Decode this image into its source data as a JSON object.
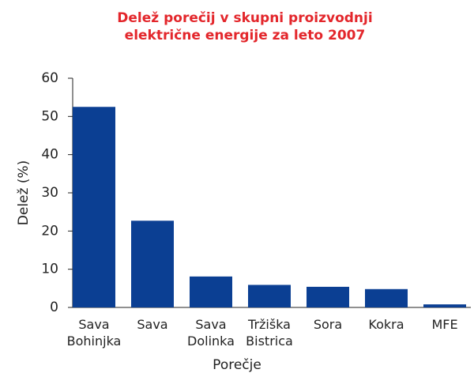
{
  "chart_data": {
    "type": "bar",
    "title": "Delež porečij v skupni proizvodnji električne energije za leto 2007",
    "x_label": "Porečje",
    "y_label": "Delež (%)",
    "categories": [
      "Sava Bohinjka",
      "Sava",
      "Sava Dolinka",
      "Tržiška Bistrica",
      "Sora",
      "Kokra",
      "MFE"
    ],
    "values": [
      52.5,
      22.7,
      8.1,
      5.9,
      5.4,
      4.8,
      0.8
    ],
    "color": "#0b3f93",
    "title_color": "#e3262b",
    "ylim": [
      0,
      60
    ],
    "yticks": [
      0,
      10,
      20,
      30,
      40,
      50,
      60
    ],
    "grid": false
  }
}
